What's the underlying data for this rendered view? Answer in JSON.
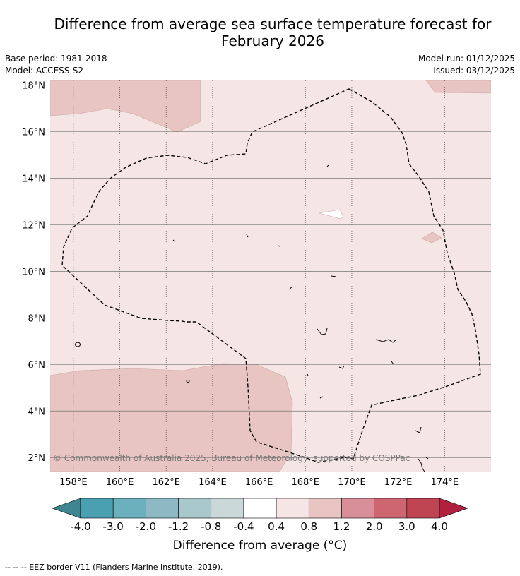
{
  "title": {
    "line1": "Difference from average sea surface temperature forecast for",
    "line2": "February 2026"
  },
  "meta": {
    "base_period": "Base period: 1981-2018",
    "model": "Model: ACCESS-S2",
    "model_run": "Model run: 01/12/2025",
    "issued": "Issued: 03/12/2025"
  },
  "map": {
    "projection": "lat-lon",
    "lon_range": [
      157,
      176
    ],
    "lat_range": [
      1.4,
      18.2
    ],
    "lon_ticks": [
      "158°E",
      "160°E",
      "162°E",
      "164°E",
      "166°E",
      "168°E",
      "170°E",
      "172°E",
      "174°E"
    ],
    "lat_ticks": [
      "2°N",
      "4°N",
      "6°N",
      "8°N",
      "10°N",
      "12°N",
      "14°N",
      "16°N",
      "18°N"
    ],
    "background_category": "0.4 to 0.8",
    "regions": [
      {
        "name": "north-west 0.8 to 1.2 anomaly",
        "category": "0.8 to 1.2"
      },
      {
        "name": "north-east 0.8 to 1.2 anomaly",
        "category": "0.8 to 1.2"
      },
      {
        "name": "south-west 0.8 to 1.2 anomaly",
        "category": "0.8 to 1.2"
      },
      {
        "name": "east 0.8 to 1.2 anomaly patch",
        "category": "0.8 to 1.2"
      },
      {
        "name": "central -0.4 to 0.4 anomaly patch",
        "category": "-0.4 to 0.4"
      }
    ],
    "copyright": "© Commonwealth of Australia 2025, Bureau of Meteorology, supported by COSPPac"
  },
  "colorbar": {
    "labels": [
      "-4.0",
      "-3.0",
      "-2.0",
      "-1.2",
      "-0.8",
      "-0.4",
      "0.4",
      "0.8",
      "1.2",
      "2.0",
      "3.0",
      "4.0"
    ],
    "colors": [
      "#3f8590",
      "#4aa0b1",
      "#6cb0bd",
      "#8db9c4",
      "#a9c8cb",
      "#cbd8da",
      "#ffffff",
      "#f5e6e5",
      "#e8c5c2",
      "#d88f97",
      "#cd6671",
      "#c04552",
      "#b0203f"
    ],
    "title": "Difference from average (°C)"
  },
  "footer": "--  --  -- EEZ border V11 (Flanders Marine Institute, 2019)."
}
